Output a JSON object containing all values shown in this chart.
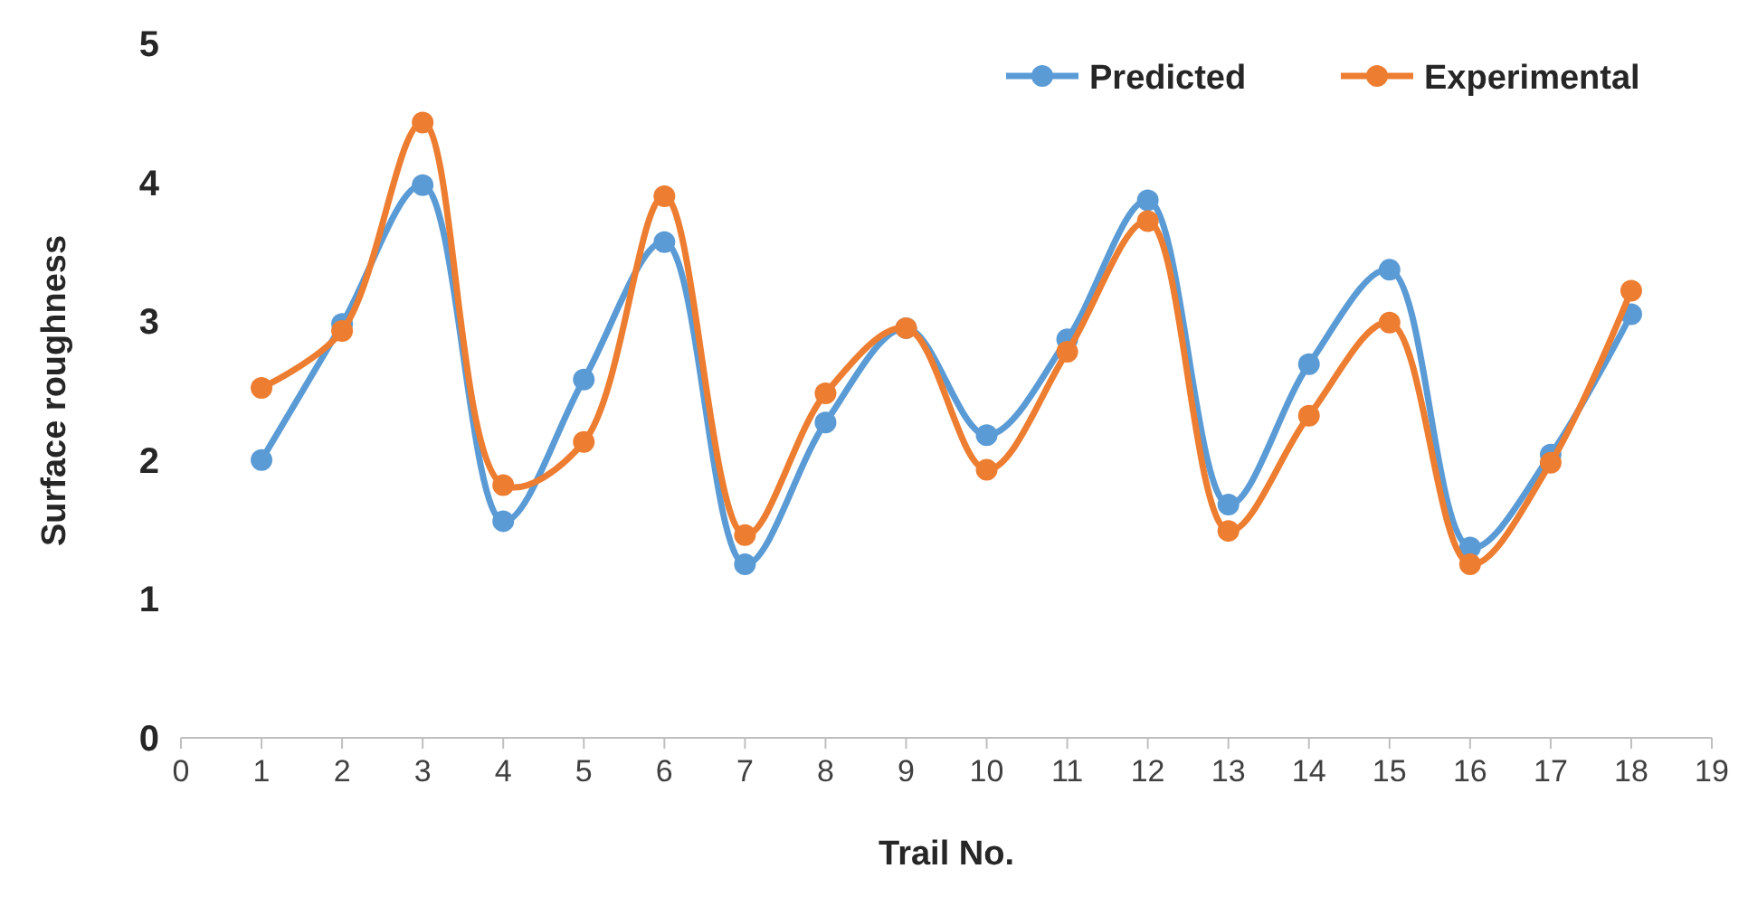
{
  "chart_data": {
    "type": "line",
    "xlabel": "Trail No.",
    "ylabel": "Surface roughness",
    "x": [
      1,
      2,
      3,
      4,
      5,
      6,
      7,
      8,
      9,
      10,
      11,
      12,
      13,
      14,
      15,
      16,
      17,
      18
    ],
    "series": [
      {
        "name": "Predicted",
        "color": "#5b9bd5",
        "values": [
          2.0,
          2.98,
          3.98,
          1.56,
          2.58,
          3.57,
          1.25,
          2.27,
          2.95,
          2.18,
          2.87,
          3.87,
          1.68,
          2.69,
          3.37,
          1.37,
          2.04,
          3.05
        ]
      },
      {
        "name": "Experimental",
        "color": "#ed7d31",
        "values": [
          2.52,
          2.93,
          4.43,
          1.82,
          2.13,
          3.9,
          1.46,
          2.48,
          2.95,
          1.93,
          2.78,
          3.72,
          1.49,
          2.32,
          2.99,
          1.25,
          1.98,
          3.22
        ]
      }
    ],
    "xlim": [
      0,
      19
    ],
    "xticks": [
      0,
      1,
      2,
      3,
      4,
      5,
      6,
      7,
      8,
      9,
      10,
      11,
      12,
      13,
      14,
      15,
      16,
      17,
      18,
      19
    ],
    "ylim": [
      0,
      5
    ],
    "yticks": [
      0,
      1,
      2,
      3,
      4,
      5
    ],
    "legend": "top right",
    "marker": "circle",
    "line_style": "solid"
  }
}
